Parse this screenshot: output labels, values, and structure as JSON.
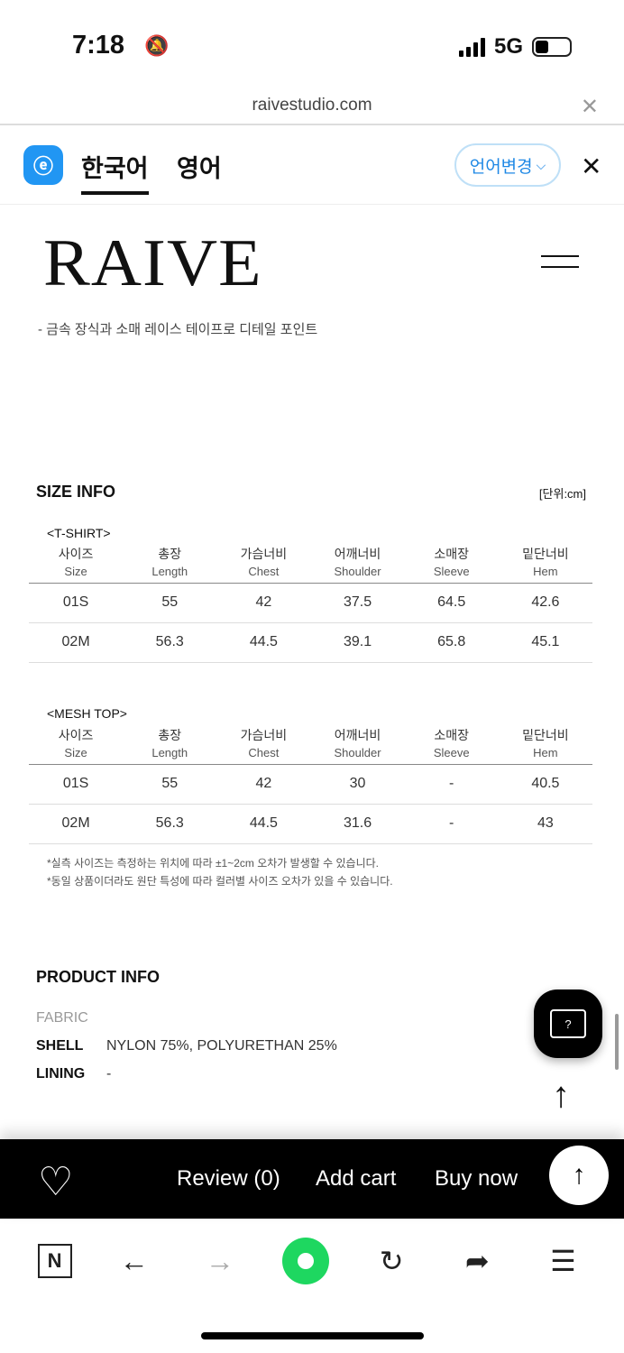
{
  "status": {
    "time": "7:18",
    "network": "5G",
    "icons": [
      "bell-slash-icon",
      "signal-icon",
      "battery-icon"
    ]
  },
  "browser": {
    "url": "raivestudio.com"
  },
  "translate": {
    "tabs": [
      "한국어",
      "영어"
    ],
    "active": 0,
    "change_lang": "언어변경"
  },
  "site": {
    "logo": "RAIVE",
    "description": "- 금속 장식과 소매 레이스 테이프로 디테일 포인트"
  },
  "size_info": {
    "title": "SIZE INFO",
    "unit": "[단위:cm]",
    "headers": [
      [
        "사이즈",
        "Size"
      ],
      [
        "총장",
        "Length"
      ],
      [
        "가슴너비",
        "Chest"
      ],
      [
        "어깨너비",
        "Shoulder"
      ],
      [
        "소매장",
        "Sleeve"
      ],
      [
        "밑단너비",
        "Hem"
      ]
    ],
    "tables": [
      {
        "name": "<T-SHIRT>",
        "rows": [
          [
            "01S",
            "55",
            "42",
            "37.5",
            "64.5",
            "42.6"
          ],
          [
            "02M",
            "56.3",
            "44.5",
            "39.1",
            "65.8",
            "45.1"
          ]
        ]
      },
      {
        "name": "<MESH TOP>",
        "rows": [
          [
            "01S",
            "55",
            "42",
            "30",
            "-",
            "40.5"
          ],
          [
            "02M",
            "56.3",
            "44.5",
            "31.6",
            "-",
            "43"
          ]
        ]
      }
    ],
    "notes": [
      "*실측 사이즈는 측정하는 위치에 따라 ±1~2cm 오차가 발생할 수 있습니다.",
      "*동일 상품이더라도 원단 특성에 따라 컬러별 사이즈 오차가 있을 수 있습니다."
    ]
  },
  "product_info": {
    "title": "PRODUCT INFO",
    "fabric_label": "FABRIC",
    "shell_label": "SHELL",
    "shell": "NYLON 75%, POLYURETHAN 25%",
    "lining_label": "LINING",
    "lining": "-"
  },
  "chat": {
    "label": "?"
  },
  "buybar": {
    "review": "Review (0)",
    "add_cart": "Add cart",
    "buy_now": "Buy now"
  },
  "navbar": {
    "n_label": "N"
  }
}
